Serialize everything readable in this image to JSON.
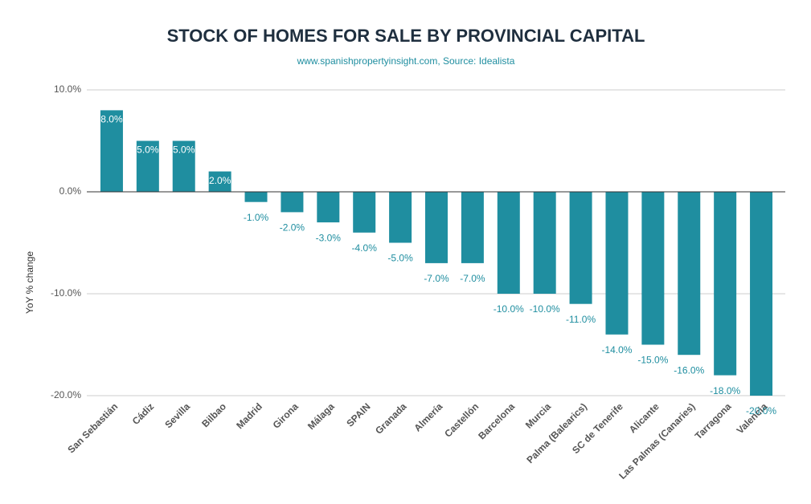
{
  "chart_data": {
    "type": "bar",
    "title": "STOCK OF HOMES FOR SALE BY PROVINCIAL CAPITAL",
    "subtitle": "www.spanishpropertyinsight.com, Source: Idealista",
    "y_axis_label": "YoY % change",
    "categories": [
      "San Sebastián",
      "Cádiz",
      "Sevilla",
      "Bilbao",
      "Madrid",
      "Girona",
      "Málaga",
      "SPAIN",
      "Granada",
      "Almería",
      "Castellón",
      "Barcelona",
      "Murcia",
      "Palma (Balearics)",
      "SC de Tenerife",
      "Alicante",
      "Las Palmas (Canaries)",
      "Tarragona",
      "Valencia"
    ],
    "values": [
      8,
      5,
      5,
      2,
      -1,
      -2,
      -3,
      -4,
      -5,
      -7,
      -7,
      -10,
      -10,
      -11,
      -14,
      -15,
      -16,
      -18,
      -20
    ],
    "value_labels": [
      "8.0%",
      "5.0%",
      "5.0%",
      "2.0%",
      "-1.0%",
      "-2.0%",
      "-3.0%",
      "-4.0%",
      "-5.0%",
      "-7.0%",
      "-7.0%",
      "-10.0%",
      "-10.0%",
      "-11.0%",
      "-14.0%",
      "-15.0%",
      "-16.0%",
      "-18.0%",
      "-20.0%"
    ],
    "color": "#1f8ea0",
    "ylim": [
      -20,
      10
    ],
    "yticks": [
      {
        "value": -20,
        "label": "-20.0%"
      },
      {
        "value": -10,
        "label": "-10.0%"
      },
      {
        "value": 0,
        "label": "0.0%"
      },
      {
        "value": 10,
        "label": "10.0%"
      }
    ],
    "grid": true
  }
}
